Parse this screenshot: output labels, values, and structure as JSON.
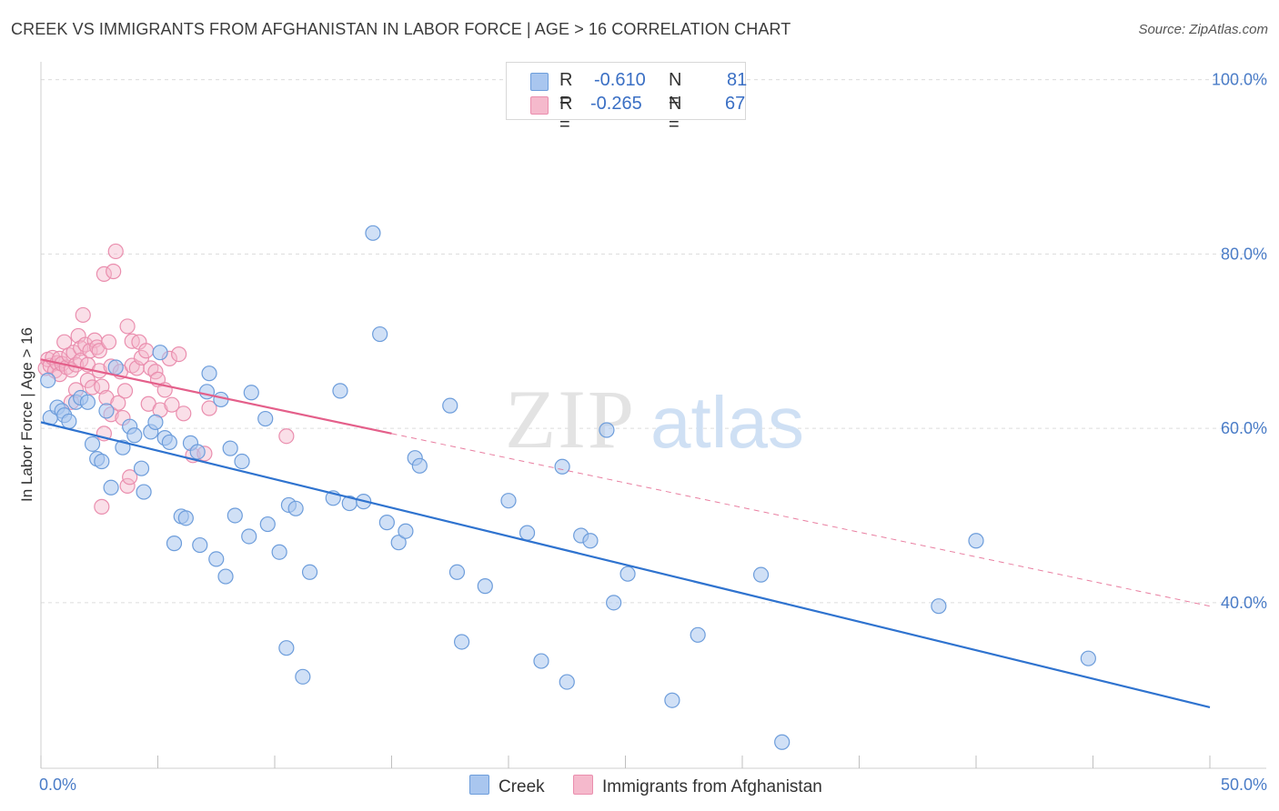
{
  "title": "CREEK VS IMMIGRANTS FROM AFGHANISTAN IN LABOR FORCE | AGE > 16 CORRELATION CHART",
  "source": "Source: ZipAtlas.com",
  "watermark": {
    "zip": "ZIP",
    "atlas": "atlas"
  },
  "legend_top": {
    "rows": [
      {
        "r_label": "R =",
        "r_value": "-0.610",
        "n_label": "N =",
        "n_value": "81"
      },
      {
        "r_label": "R =",
        "r_value": "-0.265",
        "n_label": "N =",
        "n_value": "67"
      }
    ]
  },
  "legend_bottom": {
    "creek": "Creek",
    "afghan": "Immigrants from Afghanistan"
  },
  "colors": {
    "creek_fill": "#a9c6ef",
    "creek_stroke": "#6d9ddb",
    "creek_line": "#2f73cf",
    "afghan_fill": "#f5b9cc",
    "afghan_stroke": "#ea8eae",
    "afghan_line": "#e45f8a"
  },
  "chart_data": {
    "type": "scatter",
    "title": "CREEK VS IMMIGRANTS FROM AFGHANISTAN IN LABOR FORCE | AGE > 16 CORRELATION CHART",
    "xlabel": "",
    "ylabel": "In Labor Force | Age > 16",
    "xlim": [
      0,
      50
    ],
    "ylim": [
      21,
      101
    ],
    "x_tick_labels": [
      "0.0%",
      "50.0%"
    ],
    "y_tick_labels": [
      "100.0%",
      "80.0%",
      "60.0%",
      "40.0%"
    ],
    "y_ticks": [
      100,
      80,
      60,
      40
    ],
    "grid": true,
    "legend_position": "top-center",
    "series": [
      {
        "name": "Creek",
        "r": -0.61,
        "n": 81,
        "trend": {
          "x": [
            0,
            50
          ],
          "y": [
            60.7,
            28.0
          ]
        },
        "points": [
          [
            0.3,
            65.5
          ],
          [
            0.4,
            61.2
          ],
          [
            0.7,
            62.4
          ],
          [
            0.9,
            62.0
          ],
          [
            1.0,
            61.5
          ],
          [
            1.2,
            60.8
          ],
          [
            1.5,
            63.0
          ],
          [
            1.7,
            63.5
          ],
          [
            2.0,
            63.0
          ],
          [
            2.2,
            58.2
          ],
          [
            2.4,
            56.5
          ],
          [
            2.6,
            56.2
          ],
          [
            2.8,
            62.0
          ],
          [
            3.0,
            53.2
          ],
          [
            3.2,
            67.0
          ],
          [
            3.5,
            57.8
          ],
          [
            3.8,
            60.2
          ],
          [
            4.0,
            59.2
          ],
          [
            4.3,
            55.4
          ],
          [
            4.4,
            52.7
          ],
          [
            4.7,
            59.6
          ],
          [
            4.9,
            60.7
          ],
          [
            5.1,
            68.7
          ],
          [
            5.3,
            58.9
          ],
          [
            5.5,
            58.4
          ],
          [
            5.7,
            46.8
          ],
          [
            6.0,
            49.9
          ],
          [
            6.2,
            49.7
          ],
          [
            6.4,
            58.3
          ],
          [
            6.7,
            57.3
          ],
          [
            6.8,
            46.6
          ],
          [
            7.1,
            64.2
          ],
          [
            7.2,
            66.3
          ],
          [
            7.5,
            45.0
          ],
          [
            7.7,
            63.3
          ],
          [
            7.9,
            43.0
          ],
          [
            8.1,
            57.7
          ],
          [
            8.3,
            50.0
          ],
          [
            8.6,
            56.2
          ],
          [
            8.9,
            47.6
          ],
          [
            9.0,
            64.1
          ],
          [
            9.6,
            61.1
          ],
          [
            9.7,
            49.0
          ],
          [
            10.2,
            45.8
          ],
          [
            10.5,
            34.8
          ],
          [
            10.6,
            51.2
          ],
          [
            10.9,
            50.8
          ],
          [
            11.2,
            31.5
          ],
          [
            11.5,
            43.5
          ],
          [
            12.5,
            52.0
          ],
          [
            12.8,
            64.3
          ],
          [
            13.2,
            51.4
          ],
          [
            13.8,
            51.6
          ],
          [
            14.2,
            82.4
          ],
          [
            14.5,
            70.8
          ],
          [
            14.8,
            49.2
          ],
          [
            15.3,
            46.9
          ],
          [
            15.6,
            48.2
          ],
          [
            16.0,
            56.6
          ],
          [
            16.2,
            55.7
          ],
          [
            17.5,
            62.6
          ],
          [
            17.8,
            43.5
          ],
          [
            18.0,
            35.5
          ],
          [
            19.0,
            41.9
          ],
          [
            20.0,
            51.7
          ],
          [
            20.8,
            48.0
          ],
          [
            21.4,
            33.3
          ],
          [
            22.3,
            55.6
          ],
          [
            22.5,
            30.9
          ],
          [
            23.1,
            47.7
          ],
          [
            23.5,
            47.1
          ],
          [
            24.2,
            59.8
          ],
          [
            24.5,
            40.0
          ],
          [
            25.1,
            43.3
          ],
          [
            27.0,
            28.8
          ],
          [
            28.1,
            36.3
          ],
          [
            30.8,
            43.2
          ],
          [
            31.7,
            24.0
          ],
          [
            38.4,
            39.6
          ],
          [
            40.0,
            47.1
          ],
          [
            44.8,
            33.6
          ]
        ]
      },
      {
        "name": "Immigrants from Afghanistan",
        "r": -0.265,
        "n": 67,
        "trend": {
          "x": [
            0,
            15
          ],
          "y": [
            67.9,
            59.4
          ]
        },
        "trend_dashed": {
          "x": [
            15,
            50
          ],
          "y": [
            59.4,
            39.6
          ]
        },
        "points": [
          [
            0.2,
            66.9
          ],
          [
            0.3,
            67.9
          ],
          [
            0.4,
            67.2
          ],
          [
            0.5,
            68.1
          ],
          [
            0.6,
            66.6
          ],
          [
            0.7,
            67.5
          ],
          [
            0.8,
            68.0
          ],
          [
            0.8,
            66.2
          ],
          [
            0.9,
            67.4
          ],
          [
            1.0,
            69.9
          ],
          [
            1.1,
            67.0
          ],
          [
            1.2,
            68.4
          ],
          [
            1.3,
            66.7
          ],
          [
            1.3,
            63.0
          ],
          [
            1.4,
            68.7
          ],
          [
            1.5,
            67.3
          ],
          [
            1.5,
            64.4
          ],
          [
            1.6,
            70.6
          ],
          [
            1.7,
            69.2
          ],
          [
            1.7,
            67.8
          ],
          [
            1.8,
            73.0
          ],
          [
            1.9,
            69.6
          ],
          [
            2.0,
            67.3
          ],
          [
            2.0,
            65.5
          ],
          [
            2.1,
            68.9
          ],
          [
            2.2,
            64.7
          ],
          [
            2.3,
            70.1
          ],
          [
            2.4,
            69.3
          ],
          [
            2.5,
            68.9
          ],
          [
            2.5,
            66.6
          ],
          [
            2.6,
            64.8
          ],
          [
            2.6,
            51.0
          ],
          [
            2.7,
            77.7
          ],
          [
            2.7,
            59.4
          ],
          [
            2.8,
            63.5
          ],
          [
            2.9,
            69.9
          ],
          [
            3.0,
            61.6
          ],
          [
            3.0,
            67.1
          ],
          [
            3.1,
            78.0
          ],
          [
            3.2,
            80.3
          ],
          [
            3.3,
            62.9
          ],
          [
            3.4,
            66.5
          ],
          [
            3.5,
            61.2
          ],
          [
            3.6,
            64.3
          ],
          [
            3.7,
            53.4
          ],
          [
            3.7,
            71.7
          ],
          [
            3.8,
            54.4
          ],
          [
            3.9,
            70.0
          ],
          [
            3.9,
            67.2
          ],
          [
            4.1,
            66.9
          ],
          [
            4.2,
            69.9
          ],
          [
            4.3,
            68.1
          ],
          [
            4.5,
            68.9
          ],
          [
            4.6,
            62.8
          ],
          [
            4.7,
            66.9
          ],
          [
            4.9,
            66.5
          ],
          [
            5.0,
            65.6
          ],
          [
            5.1,
            62.1
          ],
          [
            5.3,
            64.4
          ],
          [
            5.5,
            68.0
          ],
          [
            5.6,
            62.7
          ],
          [
            5.9,
            68.5
          ],
          [
            6.1,
            61.7
          ],
          [
            6.5,
            56.9
          ],
          [
            7.0,
            57.1
          ],
          [
            7.2,
            62.3
          ],
          [
            10.5,
            59.1
          ]
        ]
      }
    ]
  }
}
